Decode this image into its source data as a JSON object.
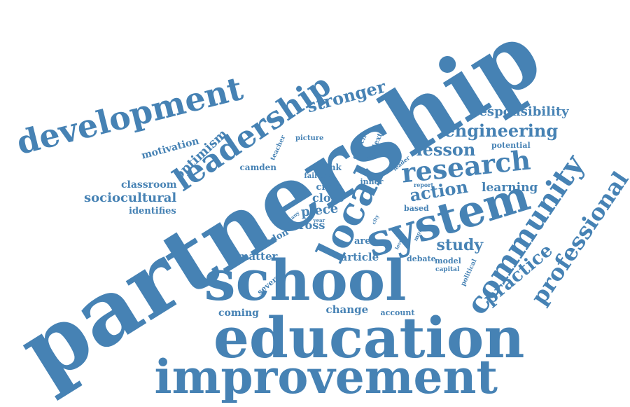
{
  "cloud": {
    "color": "#4682b4",
    "words": [
      "partnership",
      "education",
      "improvement",
      "school",
      "system",
      "local",
      "leadership",
      "development",
      "community",
      "professional",
      "research",
      "practice",
      "engineering",
      "responsibility",
      "lesson",
      "stronger",
      "action",
      "study",
      "learning",
      "sociocultural",
      "optimism",
      "motivation",
      "classroom",
      "identifies",
      "piece",
      "close",
      "cross",
      "london",
      "matter",
      "article",
      "change",
      "coming",
      "account",
      "debate",
      "model",
      "capital",
      "political",
      "area",
      "several",
      "civic",
      "inner",
      "think",
      "failure",
      "camden",
      "teacher",
      "picture",
      "council",
      "context",
      "leader",
      "report",
      "potential",
      "based",
      "many",
      "year",
      "city",
      "level",
      "more"
    ]
  }
}
